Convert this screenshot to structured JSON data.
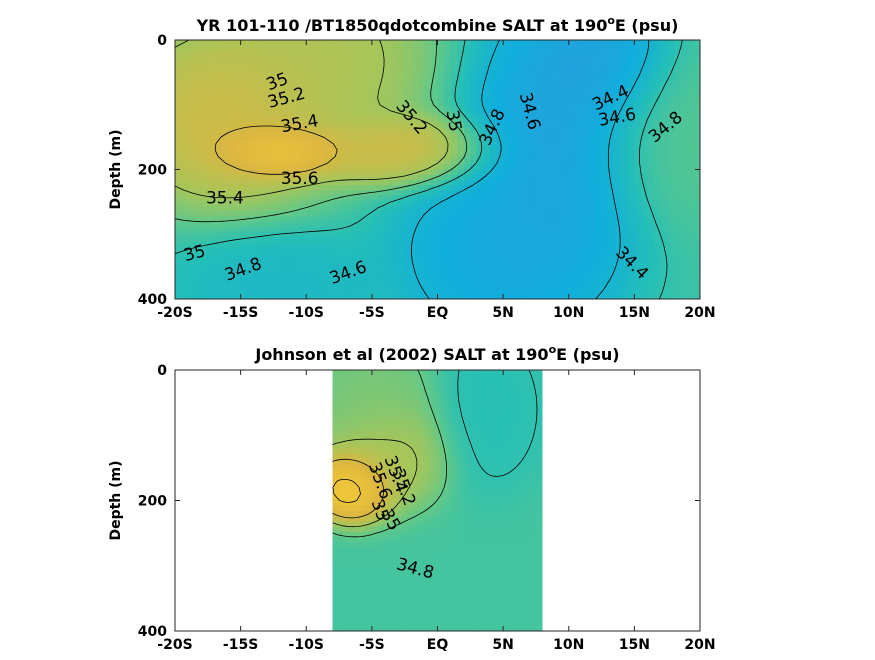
{
  "chart_data": [
    {
      "type": "heatmap",
      "subtype": "filled-contour",
      "title_main": "YR 101-110 /BT1850qdotcombine SALT at 190",
      "title_sup": "o",
      "title_end": "E (psu)",
      "xlabel": "",
      "ylabel": "Depth (m)",
      "x_ticks": [
        "-20S",
        "-15S",
        "-10S",
        "-5S",
        "EQ",
        "5N",
        "10N",
        "15N",
        "20N"
      ],
      "y_ticks": [
        "0",
        "200",
        "400"
      ],
      "xlim": [
        -20,
        20
      ],
      "ylim": [
        0,
        400
      ],
      "y_reversed": true,
      "data_extent": [
        -20,
        20
      ],
      "colormap": [
        "#3e8fdd",
        "#10aedc",
        "#25bfb7",
        "#5fc88a",
        "#a6c65a",
        "#dcb640",
        "#f1c93a",
        "#f7ee26"
      ],
      "fields": [
        {
          "lat": -12,
          "depth": 170,
          "value": 35.75,
          "r": 3.5,
          "rd": 30
        },
        {
          "lat": -16,
          "depth": 120,
          "value": 35.45,
          "r": 6,
          "rd": 100
        },
        {
          "lat": -9,
          "depth": 30,
          "value": 35.3,
          "r": 6,
          "rd": 110
        },
        {
          "lat": -3,
          "depth": 170,
          "value": 35.45,
          "r": 5,
          "rd": 40
        },
        {
          "lat": 9,
          "depth": 160,
          "value": 34.4,
          "r": 5,
          "rd": 160
        },
        {
          "lat": 12,
          "depth": 40,
          "value": 34.4,
          "r": 4,
          "rd": 80
        },
        {
          "lat": 19,
          "depth": 150,
          "value": 34.95,
          "r": 5,
          "rd": 100
        },
        {
          "lat": 5,
          "depth": 330,
          "value": 34.45,
          "r": 6,
          "rd": 100
        },
        {
          "lat": -12,
          "depth": 380,
          "value": 34.65,
          "r": 6,
          "rd": 60
        }
      ],
      "background": 34.85,
      "contour_labels": [
        {
          "text": "35",
          "lat": -12.2,
          "depth": 65,
          "angle": -20
        },
        {
          "text": "35.2",
          "lat": -11.5,
          "depth": 90,
          "angle": -15
        },
        {
          "text": "35.4",
          "lat": -10.5,
          "depth": 130,
          "angle": -10
        },
        {
          "text": "35.6",
          "lat": -10.5,
          "depth": 215,
          "angle": 0
        },
        {
          "text": "35.4",
          "lat": -16.2,
          "depth": 245,
          "angle": 0
        },
        {
          "text": "35.2",
          "lat": -2,
          "depth": 120,
          "angle": 50
        },
        {
          "text": "35",
          "lat": 1.2,
          "depth": 125,
          "angle": 80
        },
        {
          "text": "34.8",
          "lat": 4.2,
          "depth": 135,
          "angle": -65
        },
        {
          "text": "34.6",
          "lat": 7,
          "depth": 110,
          "angle": 75
        },
        {
          "text": "34.4",
          "lat": 13.2,
          "depth": 90,
          "angle": -25
        },
        {
          "text": "34.6",
          "lat": 13.7,
          "depth": 120,
          "angle": -10
        },
        {
          "text": "34.8",
          "lat": 17.4,
          "depth": 135,
          "angle": -40
        },
        {
          "text": "35",
          "lat": -18.5,
          "depth": 330,
          "angle": -15
        },
        {
          "text": "34.8",
          "lat": -14.8,
          "depth": 355,
          "angle": -20
        },
        {
          "text": "34.6",
          "lat": -6.8,
          "depth": 360,
          "angle": -20
        },
        {
          "text": "34.4",
          "lat": 14.8,
          "depth": 345,
          "angle": 45
        }
      ]
    },
    {
      "type": "heatmap",
      "subtype": "filled-contour",
      "title_main": "Johnson et al (2002) SALT at 190",
      "title_sup": "o",
      "title_end": "E (psu)",
      "xlabel": "",
      "ylabel": "Depth (m)",
      "x_ticks": [
        "-20S",
        "-15S",
        "-10S",
        "-5S",
        "EQ",
        "5N",
        "10N",
        "15N",
        "20N"
      ],
      "y_ticks": [
        "0",
        "200",
        "400"
      ],
      "xlim": [
        -20,
        20
      ],
      "ylim": [
        0,
        400
      ],
      "y_reversed": true,
      "data_extent": [
        -8,
        8
      ],
      "colormap": [
        "#3e8fdd",
        "#10aedc",
        "#25bfb7",
        "#5fc88a",
        "#a6c65a",
        "#dcb640",
        "#f1c93a",
        "#f7ee26"
      ],
      "fields": [
        {
          "lat": -6.5,
          "depth": 175,
          "value": 35.85,
          "r": 2.2,
          "rd": 40
        },
        {
          "lat": -4,
          "depth": 130,
          "value": 35.3,
          "r": 3.5,
          "rd": 60
        },
        {
          "lat": -5,
          "depth": 50,
          "value": 35.1,
          "r": 3.5,
          "rd": 70
        },
        {
          "lat": 4,
          "depth": 60,
          "value": 34.75,
          "r": 3,
          "rd": 90
        }
      ],
      "background": 34.88,
      "contour_labels": [
        {
          "text": "35.6",
          "lat": -4.4,
          "depth": 170,
          "angle": 70
        },
        {
          "text": "35.4",
          "lat": -3.2,
          "depth": 160,
          "angle": 70
        },
        {
          "text": "35.2",
          "lat": -2.6,
          "depth": 180,
          "angle": 70
        },
        {
          "text": "35",
          "lat": -4.4,
          "depth": 215,
          "angle": 70
        },
        {
          "text": "35",
          "lat": -3.6,
          "depth": 230,
          "angle": 60
        },
        {
          "text": "34.8",
          "lat": -1.7,
          "depth": 305,
          "angle": 15
        }
      ]
    }
  ]
}
